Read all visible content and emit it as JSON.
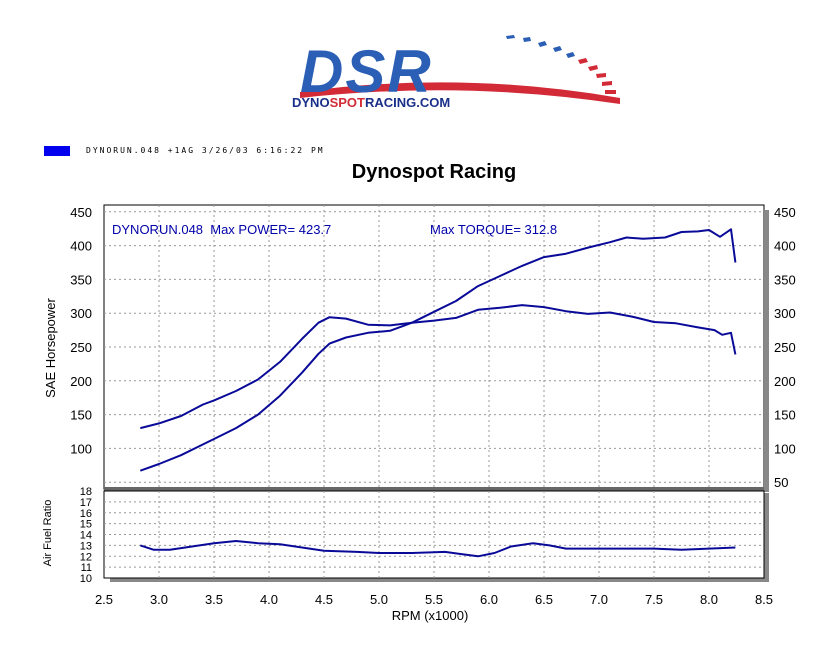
{
  "logo": {
    "big_text": "DSR",
    "url_text": "DYNOSPOTRACING.COM",
    "url_part1": "DYNO",
    "url_part2": "SPOT",
    "url_part3": "RACING",
    "url_part4": ".COM",
    "colors": {
      "blue": "#2b5fb6",
      "red": "#d22a36",
      "dark_blue": "#1a2f8a"
    }
  },
  "header": {
    "legend_color": "#0000ee",
    "run_info": "DYNORUN.048  +1AG  3/26/03 6:16:22 PM"
  },
  "chart_data": [
    {
      "type": "line",
      "title": "Dynospot Racing",
      "ylabel": "SAE Horsepower",
      "xlim": [
        2.5,
        8.5
      ],
      "ylim": [
        40,
        460
      ],
      "y_ticks_left": [
        100,
        150,
        200,
        250,
        300,
        350,
        400,
        450
      ],
      "y_ticks_right": [
        50,
        100,
        150,
        200,
        250,
        300,
        350,
        400,
        450
      ],
      "grid": true,
      "line_color": "#0a0a99",
      "annotations": {
        "power": "DYNORUN.048  Max POWER= 423.7",
        "torque": "Max TORQUE= 312.8"
      },
      "series": [
        {
          "name": "Max POWER",
          "x": [
            2.83,
            3.0,
            3.2,
            3.4,
            3.5,
            3.7,
            3.9,
            4.1,
            4.3,
            4.45,
            4.55,
            4.7,
            4.9,
            5.1,
            5.3,
            5.5,
            5.7,
            5.9,
            6.1,
            6.3,
            6.5,
            6.7,
            6.9,
            7.1,
            7.25,
            7.4,
            7.6,
            7.75,
            7.9,
            8.0,
            8.1,
            8.2,
            8.24
          ],
          "y": [
            67,
            77,
            90,
            106,
            114,
            130,
            150,
            178,
            212,
            240,
            255,
            264,
            271,
            274,
            286,
            302,
            318,
            340,
            355,
            370,
            383,
            388,
            397,
            405,
            412,
            410,
            412,
            420,
            421,
            423,
            413,
            424,
            375
          ]
        },
        {
          "name": "Max TORQUE",
          "x": [
            2.83,
            3.0,
            3.2,
            3.4,
            3.5,
            3.7,
            3.9,
            4.1,
            4.3,
            4.45,
            4.55,
            4.7,
            4.9,
            5.1,
            5.3,
            5.5,
            5.7,
            5.9,
            6.1,
            6.3,
            6.5,
            6.7,
            6.9,
            7.1,
            7.3,
            7.5,
            7.7,
            7.9,
            8.05,
            8.12,
            8.2,
            8.24
          ],
          "y": [
            130,
            137,
            148,
            165,
            171,
            185,
            202,
            228,
            262,
            286,
            294,
            292,
            283,
            282,
            286,
            289,
            293,
            305,
            308,
            312,
            309,
            303,
            299,
            301,
            295,
            287,
            285,
            279,
            275,
            268,
            271,
            239
          ]
        }
      ]
    },
    {
      "type": "line",
      "ylabel": "Air Fuel Ratio",
      "xlabel": "RPM (x1000)",
      "xlim": [
        2.5,
        8.5
      ],
      "ylim": [
        10,
        18
      ],
      "y_ticks": [
        10,
        11,
        12,
        13,
        14,
        15,
        16,
        17,
        18
      ],
      "x_ticks": [
        "2.5",
        "3.0",
        "3.5",
        "4.0",
        "4.5",
        "5.0",
        "5.5",
        "6.0",
        "6.5",
        "7.0",
        "7.5",
        "8.0",
        "8.5"
      ],
      "grid": true,
      "line_color": "#0a0a99",
      "series": [
        {
          "x": [
            2.83,
            2.95,
            3.1,
            3.3,
            3.5,
            3.7,
            3.9,
            4.1,
            4.3,
            4.5,
            4.8,
            5.0,
            5.3,
            5.6,
            5.75,
            5.9,
            6.05,
            6.2,
            6.4,
            6.55,
            6.7,
            6.9,
            7.2,
            7.5,
            7.75,
            8.0,
            8.24
          ],
          "y": [
            13.0,
            12.6,
            12.6,
            12.9,
            13.2,
            13.4,
            13.2,
            13.1,
            12.8,
            12.5,
            12.4,
            12.3,
            12.3,
            12.4,
            12.2,
            12.0,
            12.3,
            12.9,
            13.2,
            13.0,
            12.7,
            12.7,
            12.7,
            12.7,
            12.6,
            12.7,
            12.8
          ]
        }
      ]
    }
  ]
}
